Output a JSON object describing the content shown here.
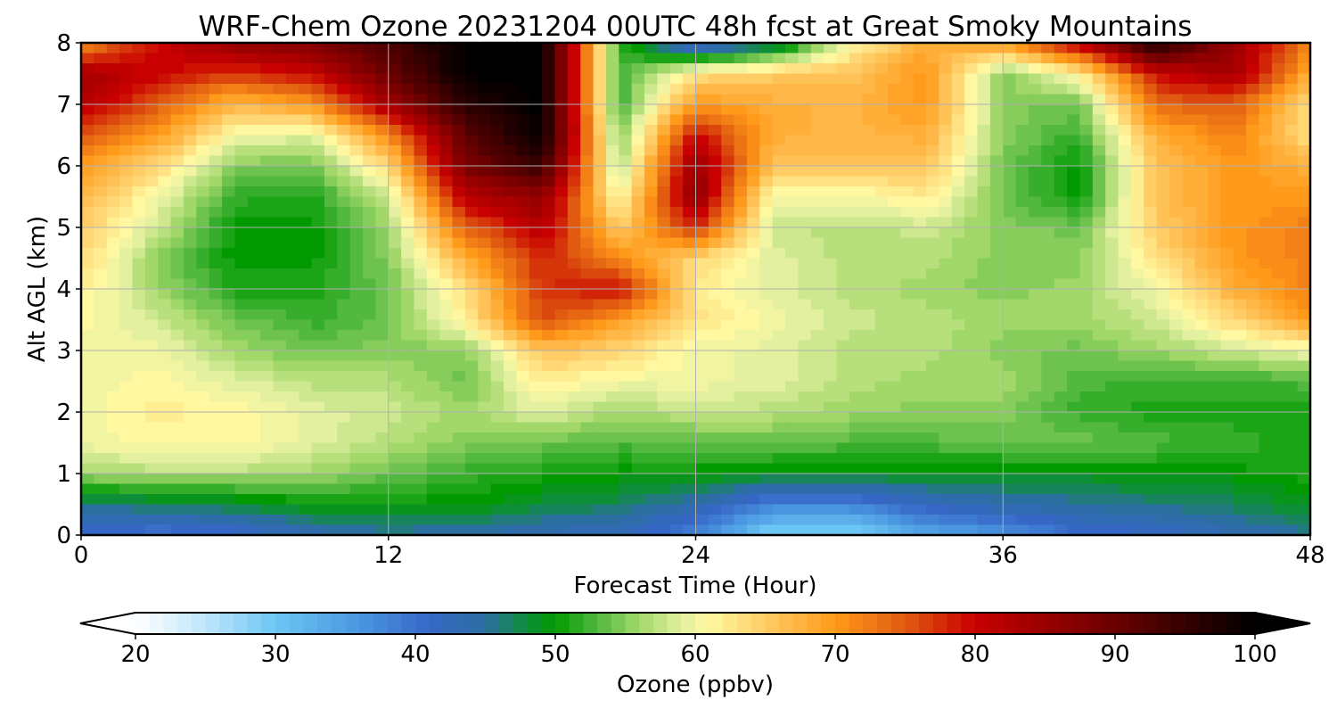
{
  "chart_data": {
    "type": "heatmap",
    "title": "WRF-Chem Ozone  20231204 00UTC 48h fcst at Great Smoky Mountains",
    "xlabel": "Forecast Time (Hour)",
    "ylabel": "Alt AGL (km)",
    "xlim": [
      0,
      48
    ],
    "ylim": [
      0,
      8
    ],
    "x_ticks": [
      "0",
      "12",
      "24",
      "36",
      "48"
    ],
    "y_ticks": [
      "0",
      "1",
      "2",
      "3",
      "4",
      "5",
      "6",
      "7",
      "8"
    ],
    "grid": true,
    "x_hours": [
      0,
      3,
      6,
      9,
      12,
      15,
      18,
      21,
      24,
      27,
      30,
      33,
      36,
      39,
      42,
      45,
      48
    ],
    "y_km": [
      0.0,
      0.5,
      1.0,
      1.5,
      2.0,
      2.5,
      3.0,
      3.5,
      4.0,
      4.5,
      5.0,
      5.5,
      6.0,
      6.5,
      7.0,
      7.5,
      8.0
    ],
    "ozone_ppbv": [
      [
        40,
        39,
        40,
        43,
        45,
        44,
        43,
        42,
        38,
        28,
        28,
        34,
        36,
        40,
        41,
        43,
        45
      ],
      [
        46,
        47,
        48,
        50,
        50,
        50,
        48,
        47,
        44,
        38,
        38,
        42,
        44,
        45,
        46,
        47,
        49
      ],
      [
        56,
        57,
        57,
        56,
        54,
        52,
        51,
        50,
        50,
        49,
        49,
        49,
        49,
        49,
        50,
        50,
        51
      ],
      [
        60,
        61,
        61,
        59,
        57,
        55,
        54,
        53,
        53,
        54,
        53,
        53,
        54,
        54,
        53,
        52,
        51
      ],
      [
        60,
        62,
        61,
        59,
        58,
        56,
        59,
        56,
        58,
        57,
        56,
        55,
        55,
        52,
        51,
        51,
        51
      ],
      [
        60,
        61,
        59,
        57,
        57,
        54,
        62,
        60,
        60,
        59,
        57,
        56,
        56,
        53,
        52,
        52,
        53
      ],
      [
        60,
        60,
        56,
        54,
        55,
        55,
        66,
        64,
        60,
        59,
        57,
        57,
        55,
        54,
        56,
        58,
        60
      ],
      [
        61,
        58,
        54,
        52,
        54,
        62,
        76,
        70,
        63,
        60,
        58,
        57,
        56,
        56,
        58,
        64,
        70
      ],
      [
        62,
        56,
        51,
        51,
        54,
        63,
        77,
        80,
        62,
        59,
        57,
        56,
        55,
        56,
        60,
        68,
        72
      ],
      [
        64,
        55,
        50,
        50,
        55,
        68,
        78,
        71,
        64,
        59,
        57,
        57,
        55,
        55,
        63,
        70,
        72
      ],
      [
        65,
        58,
        50,
        50,
        56,
        74,
        82,
        65,
        78,
        58,
        57,
        58,
        55,
        54,
        65,
        70,
        72
      ],
      [
        67,
        60,
        52,
        51,
        58,
        82,
        86,
        60,
        86,
        60,
        60,
        62,
        54,
        50,
        66,
        70,
        70
      ],
      [
        70,
        64,
        55,
        54,
        64,
        88,
        95,
        56,
        85,
        66,
        66,
        66,
        54,
        50,
        66,
        70,
        68
      ],
      [
        75,
        70,
        60,
        59,
        71,
        91,
        100,
        54,
        80,
        68,
        67,
        68,
        55,
        52,
        68,
        72,
        63
      ],
      [
        82,
        75,
        67,
        70,
        84,
        96,
        100,
        52,
        70,
        68,
        67,
        70,
        55,
        54,
        74,
        75,
        63
      ],
      [
        84,
        80,
        77,
        80,
        90,
        100,
        100,
        52,
        63,
        65,
        66,
        70,
        55,
        62,
        80,
        84,
        68
      ],
      [
        70,
        80,
        86,
        88,
        93,
        100,
        100,
        52,
        38,
        45,
        60,
        68,
        70,
        82,
        98,
        85,
        72
      ]
    ],
    "colorbar": {
      "label": "Ozone  (ppbv)",
      "min": 20,
      "max": 100,
      "tick_labels": [
        "20",
        "30",
        "40",
        "50",
        "60",
        "70",
        "80",
        "90",
        "100"
      ],
      "extend": "both",
      "stops": [
        {
          "v": 20,
          "color": "#ffffff"
        },
        {
          "v": 25,
          "color": "#bfe6fb"
        },
        {
          "v": 30,
          "color": "#6cc6f4"
        },
        {
          "v": 36,
          "color": "#4a96e0"
        },
        {
          "v": 41,
          "color": "#3667c7"
        },
        {
          "v": 45,
          "color": "#2b6fa0"
        },
        {
          "v": 48,
          "color": "#0f8e3a"
        },
        {
          "v": 50,
          "color": "#009a00"
        },
        {
          "v": 53,
          "color": "#52b840"
        },
        {
          "v": 56,
          "color": "#a2d86a"
        },
        {
          "v": 59,
          "color": "#e2f0a0"
        },
        {
          "v": 61,
          "color": "#fff8a0"
        },
        {
          "v": 65,
          "color": "#ffcc66"
        },
        {
          "v": 70,
          "color": "#ff9a1a"
        },
        {
          "v": 75,
          "color": "#e05a10"
        },
        {
          "v": 80,
          "color": "#c80000"
        },
        {
          "v": 90,
          "color": "#6a0000"
        },
        {
          "v": 100,
          "color": "#000000"
        }
      ]
    }
  }
}
